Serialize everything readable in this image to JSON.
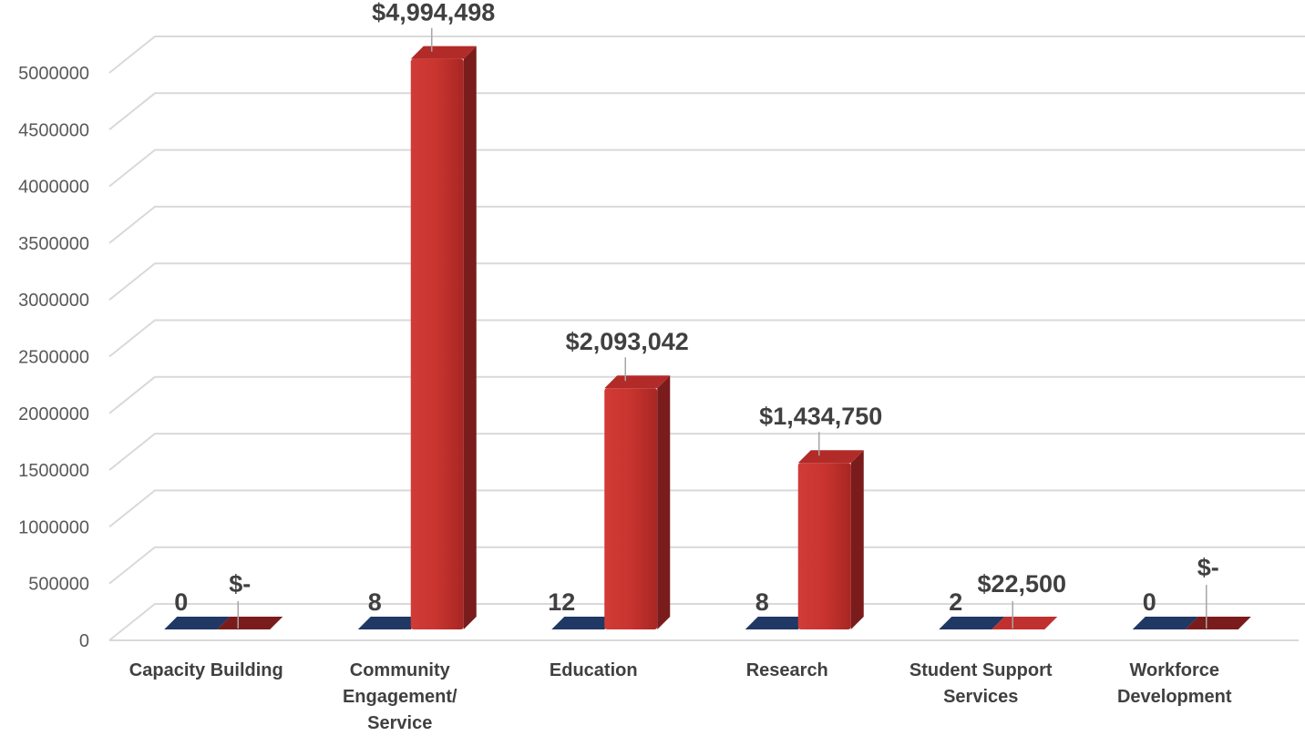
{
  "chart_data": {
    "type": "bar",
    "categories": [
      [
        "Capacity Building"
      ],
      [
        "Community",
        "Engagement/",
        "Service"
      ],
      [
        "Education"
      ],
      [
        "Research"
      ],
      [
        "Student Support",
        "Services"
      ],
      [
        "Workforce",
        "Development"
      ]
    ],
    "series": [
      {
        "values": [
          0,
          8,
          12,
          8,
          2,
          0
        ],
        "labels": [
          "0",
          "8",
          "12",
          "8",
          "2",
          "0"
        ],
        "color": "#1f3864",
        "side": "#172a4b"
      },
      {
        "values": [
          0,
          4994498,
          2093042,
          1434750,
          22500,
          0
        ],
        "labels": [
          "$-",
          "$4,994,498",
          "$2,093,042",
          "$1,434,750",
          "$22,500",
          "$-"
        ],
        "color": "#c0302e",
        "side": "#7a1c1c"
      }
    ],
    "yticks": [
      "0",
      "500000",
      "1000000",
      "1500000",
      "2000000",
      "2500000",
      "3000000",
      "3500000",
      "4000000",
      "4500000",
      "5000000"
    ],
    "ylim": [
      0,
      5000000
    ],
    "grid": true,
    "legend": "none"
  }
}
